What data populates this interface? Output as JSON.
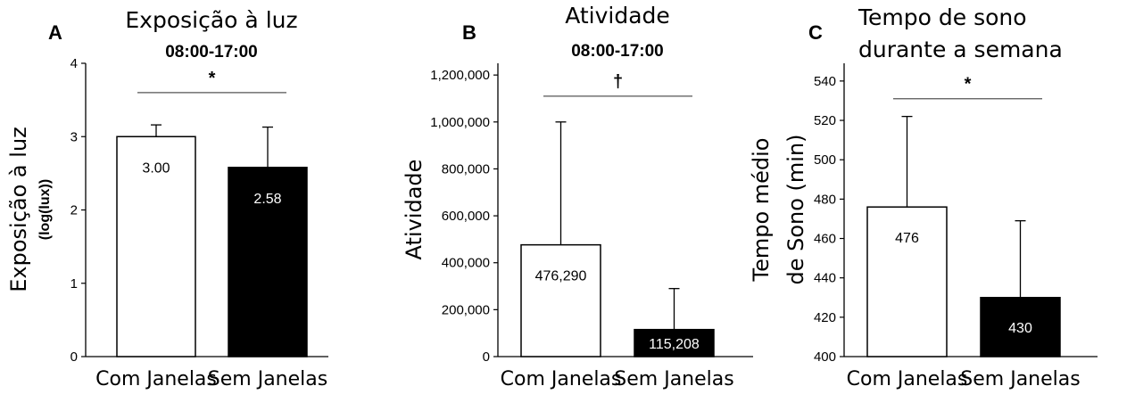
{
  "chart_data": [
    {
      "type": "bar",
      "panel": "A",
      "title": "Exposição à luz",
      "subtitle": "08:00-17:00",
      "ylabel": "Exposição à luz",
      "ylabel_unit": "(log(lux))",
      "categories": [
        "Com Janelas",
        "Sem Janelas"
      ],
      "values": [
        3.0,
        2.58
      ],
      "value_labels": [
        "3.00",
        "2.58"
      ],
      "error_upper": [
        3.16,
        3.13
      ],
      "bar_colors": [
        "#ffffff",
        "#000000"
      ],
      "label_colors": [
        "#000000",
        "#ffffff"
      ],
      "ylim": [
        0,
        4
      ],
      "yticks": [
        0,
        1,
        2,
        3,
        4
      ],
      "ytick_labels": [
        "0",
        "1",
        "2",
        "3",
        "4"
      ],
      "significance": "*",
      "sig_level": 3.6
    },
    {
      "type": "bar",
      "panel": "B",
      "title": "Atividade",
      "subtitle": "08:00-17:00",
      "ylabel": "Atividade",
      "categories": [
        "Com Janelas",
        "Sem Janelas"
      ],
      "values": [
        476290,
        115208
      ],
      "value_labels": [
        "476,290",
        "115,208"
      ],
      "error_upper": [
        1000000,
        290000
      ],
      "bar_colors": [
        "#ffffff",
        "#000000"
      ],
      "label_colors": [
        "#000000",
        "#ffffff"
      ],
      "ylim": [
        0,
        1250000
      ],
      "yticks": [
        0,
        200000,
        400000,
        600000,
        800000,
        1000000,
        1200000
      ],
      "ytick_labels": [
        "0",
        "200,000",
        "400,000",
        "600,000",
        "800,000",
        "1,000,000",
        "1,200,000"
      ],
      "significance": "†",
      "sig_level": 1110000
    },
    {
      "type": "bar",
      "panel": "C",
      "title": "Tempo de sono durante a semana",
      "title_lines": [
        "Tempo de sono",
        "durante a semana"
      ],
      "ylabel": "Tempo médio de Sono (min)",
      "ylabel_lines": [
        "Tempo médio",
        "de Sono (min)"
      ],
      "categories": [
        "Com Janelas",
        "Sem Janelas"
      ],
      "values": [
        476,
        430
      ],
      "value_labels": [
        "476",
        "430"
      ],
      "error_upper": [
        522,
        469
      ],
      "bar_colors": [
        "#ffffff",
        "#000000"
      ],
      "label_colors": [
        "#000000",
        "#ffffff"
      ],
      "ylim": [
        400,
        549
      ],
      "yticks": [
        400,
        420,
        440,
        460,
        480,
        500,
        520,
        540
      ],
      "ytick_labels": [
        "400",
        "420",
        "440",
        "460",
        "480",
        "500",
        "520",
        "540"
      ],
      "significance": "*",
      "sig_level": 531
    }
  ]
}
